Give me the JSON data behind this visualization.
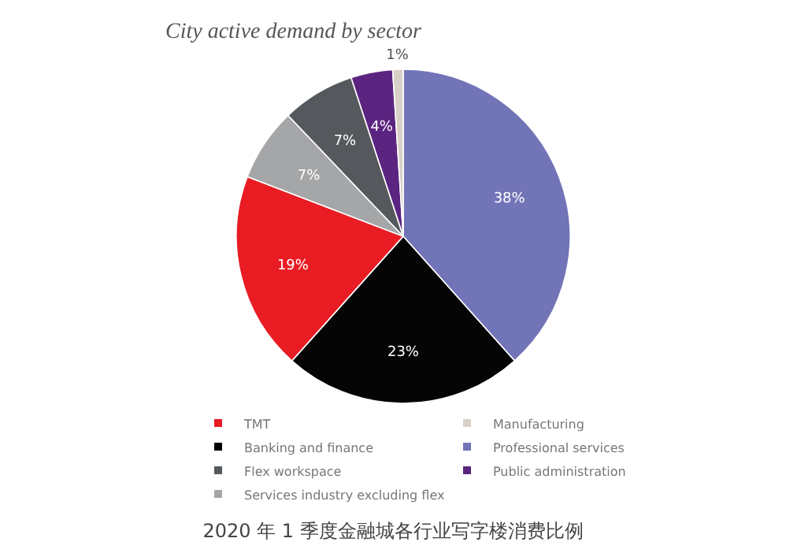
{
  "chart_data": {
    "type": "pie",
    "title": "City active demand by sector",
    "categories": [
      "Professional services",
      "Banking and finance",
      "TMT",
      "Services industry excluding flex",
      "Flex workspace",
      "Public administration",
      "Manufacturing"
    ],
    "values": [
      38,
      23,
      19,
      7,
      7,
      4,
      1
    ],
    "value_labels": [
      "38%",
      "23%",
      "19%",
      "7%",
      "7%",
      "4%",
      "1%"
    ],
    "colors": [
      "#7274b8",
      "#050505",
      "#e91c24",
      "#a5a6a8",
      "#55585c",
      "#5b2480",
      "#d8d0c6"
    ],
    "legend": "bottom",
    "annotations": [
      "2020 年 1 季度金融城各行业写字楼消费比例"
    ]
  }
}
